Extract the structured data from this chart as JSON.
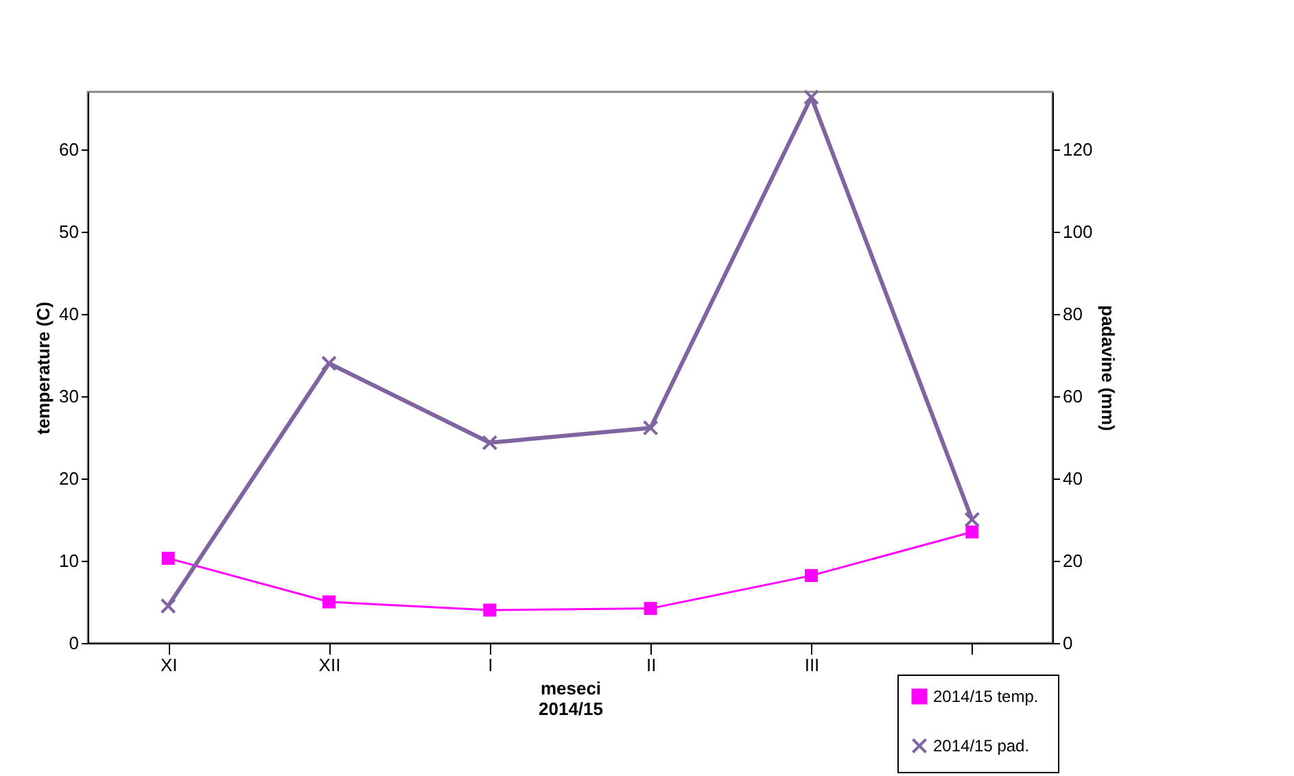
{
  "chart_data": {
    "type": "line",
    "xlabel": "meseci\n2014/15",
    "ylabel": "temperature (C)",
    "y2label": "padavine (mm)",
    "categories": [
      "XI",
      "XII",
      "I",
      "II",
      "III",
      null
    ],
    "ylim": [
      0,
      67
    ],
    "yticks": [
      0,
      10,
      20,
      30,
      40,
      50,
      60
    ],
    "y2lim": [
      0,
      134
    ],
    "y2ticks": [
      0,
      20,
      40,
      60,
      80,
      100,
      120
    ],
    "grid": false,
    "legend": "bottom right",
    "series": [
      {
        "name": "2014/15  temp.",
        "color": "#ff00ff",
        "marker": "square",
        "values": [
          10.3,
          5.0,
          4.0,
          4.2,
          8.2,
          13.5
        ]
      },
      {
        "name": "2014/15  pad.",
        "color": "#8064a2",
        "marker": "cross",
        "axis": "y2",
        "values": [
          9,
          68,
          48.7,
          52.3,
          132.7,
          30
        ]
      }
    ]
  }
}
